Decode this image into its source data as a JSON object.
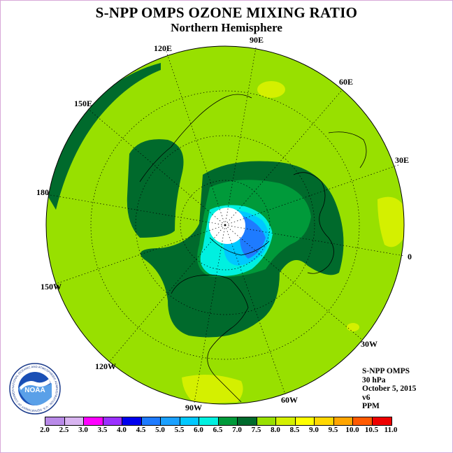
{
  "title": "S-NPP OMPS OZONE MIXING RATIO",
  "subtitle": "Northern Hemisphere",
  "longitude_labels": {
    "lon_90e": "90E",
    "lon_60e": "60E",
    "lon_30e": "30E",
    "lon_0": "0",
    "lon_30w": "30W",
    "lon_60w": "60W",
    "lon_90w": "90W",
    "lon_120w": "120W",
    "lon_150w": "150W",
    "lon_180": "180",
    "lon_150e": "150E",
    "lon_120e": "120E"
  },
  "info": {
    "instrument": "S-NPP OMPS",
    "level": "30 hPa",
    "date": "October 5, 2015",
    "version": "v6",
    "units": "PPM"
  },
  "colorbar": {
    "ticks": [
      "2.0",
      "2.5",
      "3.0",
      "3.5",
      "4.0",
      "4.5",
      "5.0",
      "5.5",
      "6.0",
      "6.5",
      "7.0",
      "7.5",
      "8.0",
      "8.5",
      "9.0",
      "9.5",
      "10.0",
      "10.5",
      "11.0"
    ],
    "colors": [
      "#b98ae8",
      "#d8b4f0",
      "#ff00ff",
      "#9b30ff",
      "#0000ee",
      "#1e7bff",
      "#1aa0ff",
      "#00c8ff",
      "#00f0e0",
      "#009a3a",
      "#006a2c",
      "#98e000",
      "#d4f000",
      "#ffff00",
      "#ffd700",
      "#ffa500",
      "#ff5a00",
      "#ee0000",
      "#8b4513"
    ]
  },
  "logo": {
    "text": "NOAA",
    "ring_text": "NATIONAL OCEANIC AND ATMOSPHERIC ADMINISTRATION · U.S. DEPARTMENT OF COMMERCE"
  }
}
